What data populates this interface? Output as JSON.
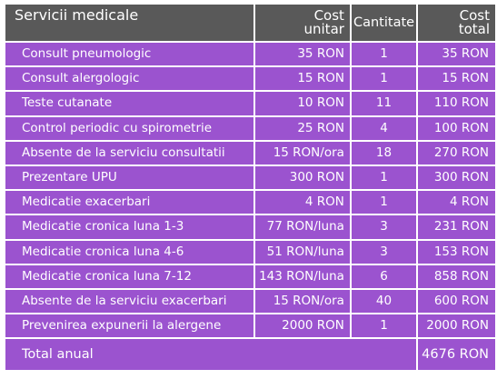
{
  "header": {
    "service": "Servicii medicale",
    "unit_cost_line1": "Cost",
    "unit_cost_line2": "unitar",
    "quantity": "Cantitate",
    "total_cost_line1": "Cost",
    "total_cost_line2": "total"
  },
  "rows": [
    {
      "service": "Consult pneumologic",
      "unit_cost": "35 RON",
      "quantity": "1",
      "total_cost": "35 RON"
    },
    {
      "service": "Consult alergologic",
      "unit_cost": "15 RON",
      "quantity": "1",
      "total_cost": "15 RON"
    },
    {
      "service": "Teste cutanate",
      "unit_cost": "10 RON",
      "quantity": "11",
      "total_cost": "110 RON"
    },
    {
      "service": "Control periodic cu spirometrie",
      "unit_cost": "25 RON",
      "quantity": "4",
      "total_cost": "100 RON"
    },
    {
      "service": "Absente de la serviciu consultatii",
      "unit_cost": "15 RON/ora",
      "quantity": "18",
      "total_cost": "270 RON"
    },
    {
      "service": "Prezentare UPU",
      "unit_cost": "300 RON",
      "quantity": "1",
      "total_cost": "300 RON"
    },
    {
      "service": "Medicatie exacerbari",
      "unit_cost": "4 RON",
      "quantity": "1",
      "total_cost": "4 RON"
    },
    {
      "service": "Medicatie cronica luna 1-3",
      "unit_cost": "77 RON/luna",
      "quantity": "3",
      "total_cost": "231 RON"
    },
    {
      "service": "Medicatie cronica luna 4-6",
      "unit_cost": "51 RON/luna",
      "quantity": "3",
      "total_cost": "153 RON"
    },
    {
      "service": "Medicatie cronica luna 7-12",
      "unit_cost": "143 RON/luna",
      "quantity": "6",
      "total_cost": "858 RON"
    },
    {
      "service": "Absente de la serviciu exacerbari",
      "unit_cost": "15 RON/ora",
      "quantity": "40",
      "total_cost": "600 RON"
    },
    {
      "service": "Prevenirea expunerii la alergene",
      "unit_cost": "2000 RON",
      "quantity": "1",
      "total_cost": "2000 RON"
    }
  ],
  "footer": {
    "label": "Total anual",
    "value": "4676 RON"
  },
  "colors": {
    "header_bg": "#595959",
    "row_bg": "#9b53cf",
    "text": "#ffffff"
  }
}
